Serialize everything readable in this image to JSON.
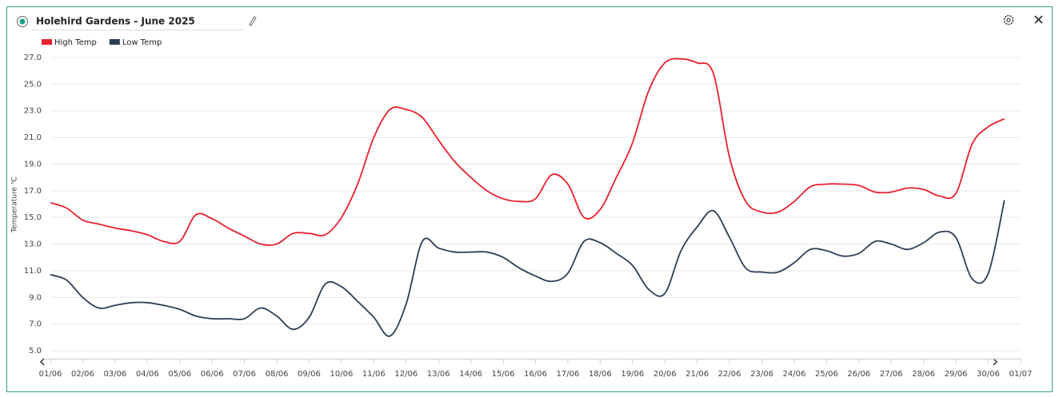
{
  "chart_data": {
    "type": "line",
    "title": "Holehird Gardens - June 2025",
    "y_label": "Temperature ℃",
    "categories": [
      "01/06",
      null,
      "02/06",
      null,
      "03/06",
      null,
      "04/06",
      null,
      "05/06",
      null,
      "06/06",
      null,
      "07/06",
      null,
      "08/06",
      null,
      "09/06",
      null,
      "10/06",
      null,
      "11/06",
      null,
      "12/06",
      null,
      "13/06",
      null,
      "14/06",
      null,
      "15/06",
      null,
      "16/06",
      null,
      "17/06",
      null,
      "18/06",
      null,
      "19/06",
      null,
      "20/06",
      null,
      "21/06",
      null,
      "22/06",
      null,
      "23/06",
      null,
      "24/06",
      null,
      "25/06",
      null,
      "26/06",
      null,
      "27/06",
      null,
      "28/06",
      null,
      "29/06",
      null,
      "30/06",
      null,
      "01/07"
    ],
    "series": [
      {
        "name": "High Temp",
        "color": "#e8202e",
        "values": [
          16.1,
          15.7,
          14.8,
          14.5,
          14.2,
          14.0,
          13.7,
          13.2,
          13.2,
          15.2,
          14.9,
          14.2,
          13.6,
          13.0,
          13.0,
          13.8,
          13.8,
          13.7,
          15.0,
          17.5,
          21.0,
          23.1,
          23.1,
          22.5,
          20.8,
          19.2,
          18.0,
          17.0,
          16.4,
          16.2,
          16.4,
          18.2,
          17.5,
          15.0,
          15.6,
          18.0,
          20.6,
          24.5,
          26.6,
          26.9,
          26.6,
          25.8,
          19.5,
          16.2,
          15.4,
          15.4,
          16.2,
          17.3,
          17.5,
          17.5,
          17.4,
          16.9,
          16.9,
          17.2,
          17.1,
          16.6,
          16.8,
          20.5,
          21.8,
          22.4,
          null
        ]
      },
      {
        "name": "Low Temp",
        "color": "#2c3e55",
        "values": [
          10.7,
          10.3,
          9.0,
          8.2,
          8.4,
          8.6,
          8.6,
          8.4,
          8.1,
          7.6,
          7.4,
          7.4,
          7.4,
          8.2,
          7.6,
          6.6,
          7.5,
          10.0,
          9.8,
          8.7,
          7.5,
          6.1,
          8.5,
          13.2,
          12.7,
          12.4,
          12.4,
          12.4,
          12.0,
          11.2,
          10.6,
          10.2,
          10.8,
          13.2,
          13.1,
          12.3,
          11.4,
          9.6,
          9.3,
          12.5,
          14.3,
          15.5,
          13.5,
          11.2,
          10.9,
          10.9,
          11.6,
          12.6,
          12.5,
          12.1,
          12.3,
          13.2,
          13.0,
          12.6,
          13.1,
          13.9,
          13.5,
          10.4,
          10.8,
          16.3,
          null
        ]
      }
    ],
    "ylim": [
      5,
      27
    ],
    "yticks": [
      {
        "value": 5,
        "label": "5.0"
      },
      {
        "value": 7,
        "label": "7.0"
      },
      {
        "value": 9,
        "label": "9.0"
      },
      {
        "value": 11,
        "label": "11.0"
      },
      {
        "value": 13,
        "label": "13.0"
      },
      {
        "value": 15,
        "label": "15.0"
      },
      {
        "value": 17,
        "label": "17.0"
      },
      {
        "value": 19,
        "label": "19.0"
      },
      {
        "value": 21,
        "label": "21.0"
      },
      {
        "value": 23,
        "label": "23.0"
      },
      {
        "value": 25,
        "label": "25.0"
      },
      {
        "value": 27,
        "label": "27.0"
      }
    ],
    "grid": true
  }
}
